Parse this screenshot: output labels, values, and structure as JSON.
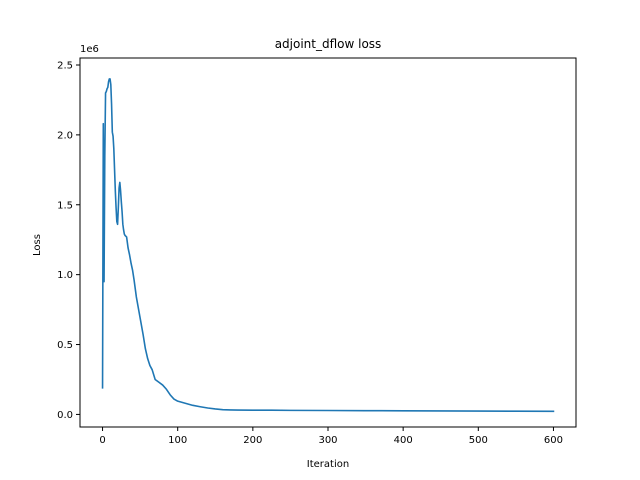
{
  "chart_data": {
    "type": "line",
    "title": "adjoint_dflow loss",
    "xlabel": "Iteration",
    "ylabel": "Loss",
    "y_offset_label": "1e6",
    "xlim": [
      -30,
      630
    ],
    "ylim": [
      -0.09,
      2.55
    ],
    "x_ticks": [
      0,
      100,
      200,
      300,
      400,
      500,
      600
    ],
    "y_ticks": [
      0.0,
      0.5,
      1.0,
      1.5,
      2.0,
      2.5
    ],
    "y_tick_labels": [
      "0.0",
      "0.5",
      "1.0",
      "1.5",
      "2.0",
      "2.5"
    ],
    "grid": false,
    "series": [
      {
        "color": "#1f77b4",
        "x": [
          0,
          1,
          2,
          3,
          4,
          5,
          6,
          7,
          8,
          9,
          10,
          11,
          12,
          13,
          14,
          15,
          16,
          17,
          18,
          19,
          20,
          21,
          22,
          23,
          24,
          25,
          26,
          27,
          28,
          29,
          30,
          32,
          34,
          36,
          38,
          40,
          42,
          45,
          48,
          51,
          54,
          57,
          60,
          63,
          66,
          70,
          75,
          80,
          85,
          90,
          95,
          100,
          110,
          120,
          130,
          140,
          150,
          160,
          170,
          180,
          200,
          225,
          250,
          300,
          350,
          400,
          450,
          500,
          550,
          600
        ],
        "values": [
          0.19,
          2.08,
          0.95,
          1.85,
          2.3,
          2.31,
          2.33,
          2.34,
          2.38,
          2.4,
          2.4,
          2.36,
          2.22,
          2.02,
          1.99,
          1.9,
          1.75,
          1.6,
          1.48,
          1.38,
          1.36,
          1.48,
          1.62,
          1.66,
          1.6,
          1.52,
          1.45,
          1.36,
          1.32,
          1.29,
          1.28,
          1.27,
          1.19,
          1.14,
          1.08,
          1.03,
          0.96,
          0.84,
          0.75,
          0.66,
          0.57,
          0.47,
          0.4,
          0.35,
          0.32,
          0.25,
          0.23,
          0.21,
          0.18,
          0.14,
          0.11,
          0.095,
          0.08,
          0.065,
          0.055,
          0.046,
          0.039,
          0.034,
          0.032,
          0.031,
          0.03,
          0.03,
          0.029,
          0.028,
          0.027,
          0.026,
          0.025,
          0.024,
          0.023,
          0.022
        ]
      }
    ]
  }
}
